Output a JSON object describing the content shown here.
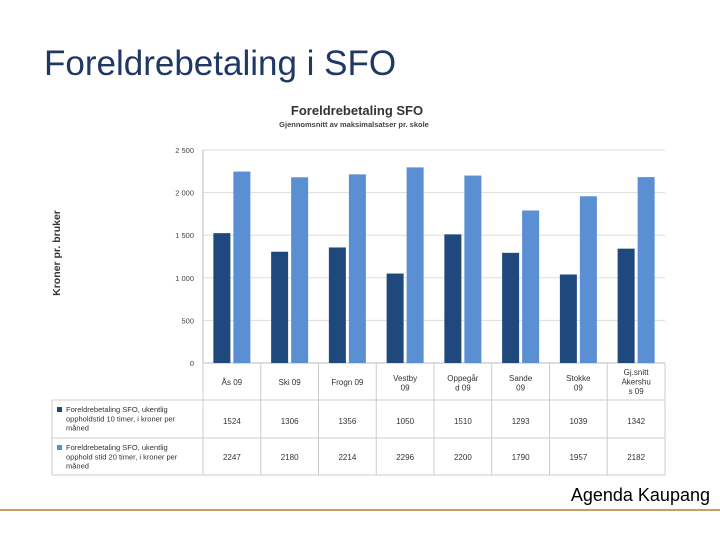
{
  "slide": {
    "title": "Foreldrebetaling i SFO",
    "footer": "Agenda Kaupang"
  },
  "colors": {
    "series1": "#1f497d",
    "series2": "#5b8fd4",
    "title": "#1f3864",
    "footer_line": "#c8a060"
  },
  "chart_data": {
    "type": "bar",
    "title": "Foreldrebetaling SFO",
    "subtitle": "Gjennomsnitt av maksimalsatser pr. skole",
    "ylabel": "Kroner pr. bruker",
    "xlabel": "",
    "ylim": [
      0,
      2500
    ],
    "yticks": [
      "2 500",
      "2 000",
      "1 500",
      "1 000",
      "500",
      "0"
    ],
    "ytick_values": [
      2500,
      2000,
      1500,
      1000,
      500,
      0
    ],
    "grid": true,
    "legend": "data-table-below",
    "categories": [
      [
        "Ås 09"
      ],
      [
        "Ski 09"
      ],
      [
        "Frogn 09"
      ],
      [
        "Vestby",
        "09"
      ],
      [
        "Oppegår",
        "d 09"
      ],
      [
        "Sande",
        "09"
      ],
      [
        "Stokke",
        "09"
      ],
      [
        "Gj.snitt",
        "Akershu",
        "s 09"
      ]
    ],
    "series": [
      {
        "name": [
          "Foreldrebetaling SFO, ukentlig",
          "oppholdstid 10 timer, i kroner per",
          "måned"
        ],
        "values": [
          1524,
          1306,
          1356,
          1050,
          1510,
          1293,
          1039,
          1342
        ],
        "labels": [
          "1524",
          "1306",
          "1356",
          "1050",
          "1510",
          "1293",
          "1039",
          "1342"
        ]
      },
      {
        "name": [
          "Foreldrebetaling SFO, ukentlig",
          "opphold stid 20 timer, i kroner per",
          "måned"
        ],
        "values": [
          2247,
          2180,
          2214,
          2296,
          2200,
          1790,
          1957,
          2182
        ],
        "labels": [
          "2247",
          "2180",
          "2214",
          "2296",
          "2200",
          "1790",
          "1957",
          "2182"
        ]
      }
    ]
  }
}
